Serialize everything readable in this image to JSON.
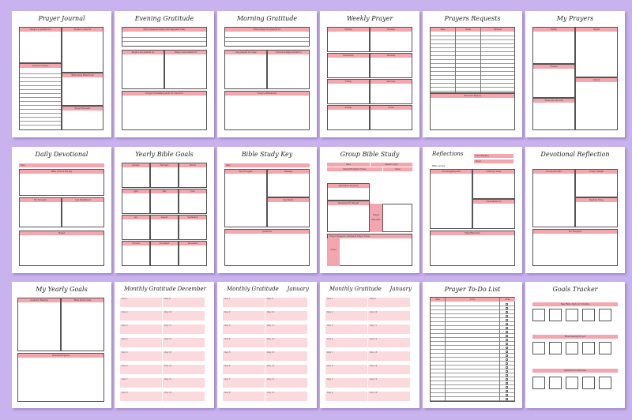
{
  "pages": [
    {
      "title": "Prayer Journal",
      "labels": [
        "Things I'm grateful for",
        "People to pray for",
        "Answered Prayer",
        "Bible Verse Reflections",
        "Prayer Requests",
        "Scripture"
      ]
    },
    {
      "title": "Evening Gratitude",
      "labels": [
        "Three Awesome things that happened today",
        "People I am grateful for",
        "Things I am grateful for",
        "Things I'm thankful about for tomorrow"
      ]
    },
    {
      "title": "Morning Gratitude",
      "labels": [
        "Three things I'm grateful for",
        "I am grateful for today",
        "I will be looking forward to",
        "Today's affirmations"
      ]
    },
    {
      "title": "Weekly Prayer",
      "labels": [
        "Monday",
        "Tuesday",
        "Wednesday",
        "Thursday",
        "Friday",
        "Saturday",
        "Sunday",
        "Notes"
      ]
    },
    {
      "title": "Prayers Requests",
      "labels": [
        "Date",
        "Name",
        "Request",
        "Answered Prayers"
      ]
    },
    {
      "title": "My Prayers",
      "labels": [
        "Family",
        "Myself",
        "Friends",
        "Church",
        "Those who are sick"
      ]
    },
    {
      "title": "Daily Devotional",
      "labels": [
        "Date",
        "Bible verse of the day",
        "My Thoughts",
        "I am thankful for",
        "Prayer"
      ]
    },
    {
      "title": "Yearly Bible Goals",
      "labels": [
        "January",
        "February",
        "March",
        "April",
        "May",
        "June",
        "July",
        "August",
        "September",
        "October",
        "November",
        "December"
      ]
    },
    {
      "title": "Bible Study Key",
      "labels": [
        "Date",
        "Key Thoughts",
        "Passage",
        "Key Words",
        "Questions"
      ]
    },
    {
      "title": "Group Bible Study",
      "labels": [
        "Date",
        "Session Topic",
        "Pastor/Facilitator Name",
        "Verse",
        "Application Question",
        "Questions For Myself",
        "Prayer Requests",
        "Prayer Requests / Answered Prayer Notes",
        "Notes"
      ]
    },
    {
      "title": "Reflections",
      "labels": [
        "Bible verses",
        "Date Reading",
        "Mood",
        "I'm Struggling with",
        "I Feel Joy Today",
        "I'm Grateful for",
        "Final Reflection"
      ]
    },
    {
      "title": "Devotional Reflection",
      "labels": [
        "Devotional Title",
        "Today's Insight",
        "Reading Notes",
        "My Thoughts"
      ]
    },
    {
      "title": "My Yearly Goals",
      "labels": [
        "Academic Reading",
        "Bible Study Goals",
        "Personal Progress"
      ]
    },
    {
      "title": "Monthly Gratitude",
      "month": "December",
      "labels": [
        "Day 1",
        "Day 2",
        "Day 3",
        "Day 4",
        "Day 5",
        "Day 6",
        "Day 7",
        "Day 8",
        "Day 9",
        "Day 10",
        "Day 11",
        "Day 12",
        "Day 13",
        "Day 14",
        "Day 15",
        "Day 16"
      ]
    },
    {
      "title": "Monthly Gratitude",
      "month": "January",
      "labels": [
        "Day 1",
        "Day 2",
        "Day 3",
        "Day 4",
        "Day 5",
        "Day 6",
        "Day 7",
        "Day 8",
        "Day 9",
        "Day 10",
        "Day 11",
        "Day 12",
        "Day 13",
        "Day 14",
        "Day 15",
        "Day 16"
      ]
    },
    {
      "title": "Monthly Gratitude",
      "month": "January",
      "labels": [
        "Day 1",
        "Day 2",
        "Day 3",
        "Day 4",
        "Day 5",
        "Day 6",
        "Day 7",
        "Day 8",
        "Day 9",
        "Day 10",
        "Day 11",
        "Day 12",
        "Day 13",
        "Day 14",
        "Day 15",
        "Day 16"
      ]
    },
    {
      "title": "Prayer To-Do List",
      "labels": [
        "Date",
        "To Do",
        "Done"
      ]
    },
    {
      "title": "Goals Tracker",
      "labels": [
        "Read Bible Daily for 3 Months",
        "Bible Reading Project",
        "Spiritual Growth Goals"
      ]
    }
  ],
  "colors": {
    "background": "#c9b3ee",
    "accent": "#f4a6ae",
    "accent_light": "#fbd9dd"
  }
}
